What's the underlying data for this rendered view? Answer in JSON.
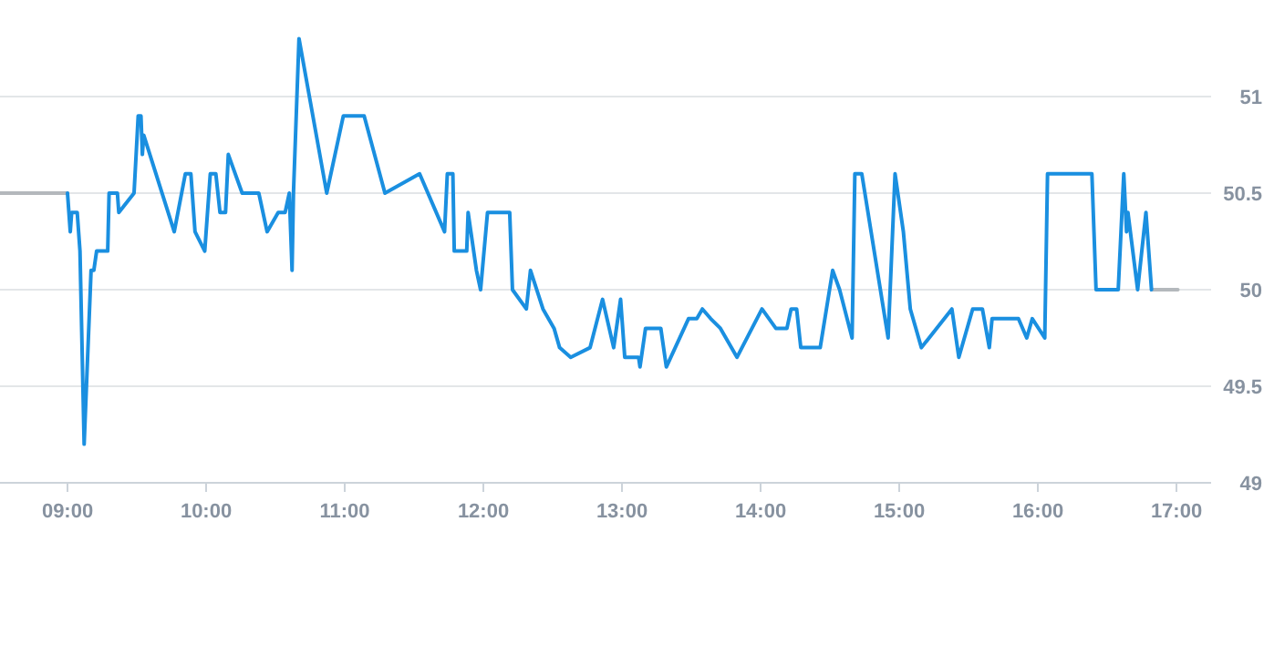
{
  "chart_data": {
    "type": "line",
    "xlim": [
      8.513,
      17.25
    ],
    "ylim": [
      49,
      51.5
    ],
    "xticks": [
      {
        "value": 9,
        "label": "09:00"
      },
      {
        "value": 10,
        "label": "10:00"
      },
      {
        "value": 11,
        "label": "11:00"
      },
      {
        "value": 12,
        "label": "12:00"
      },
      {
        "value": 13,
        "label": "13:00"
      },
      {
        "value": 14,
        "label": "14:00"
      },
      {
        "value": 15,
        "label": "15:00"
      },
      {
        "value": 16,
        "label": "16:00"
      },
      {
        "value": 17,
        "label": "17:00"
      }
    ],
    "yticks": [
      49,
      49.5,
      50,
      50.5,
      51
    ],
    "grid": "y",
    "series": [
      {
        "color": "#b4b8bc",
        "x": [
          8.513,
          9.0,
          9.01,
          16.82,
          17.01
        ],
        "values": [
          50.5,
          50.5,
          null,
          50,
          50
        ]
      },
      {
        "color": "#1a8fe0",
        "x": [
          9.0,
          9.02,
          9.03,
          9.07,
          9.09,
          9.12,
          9.17,
          9.19,
          9.21,
          9.29,
          9.3,
          9.36,
          9.37,
          9.48,
          9.51,
          9.53,
          9.54,
          9.55,
          9.77,
          9.85,
          9.89,
          9.92,
          9.99,
          10.03,
          10.07,
          10.1,
          10.14,
          10.16,
          10.26,
          10.38,
          10.44,
          10.52,
          10.57,
          10.6,
          10.62,
          10.63,
          10.67,
          10.87,
          10.99,
          11.14,
          11.29,
          11.54,
          11.72,
          11.74,
          11.78,
          11.79,
          11.88,
          11.89,
          11.95,
          11.98,
          12.03,
          12.19,
          12.21,
          12.31,
          12.34,
          12.43,
          12.51,
          12.55,
          12.63,
          12.77,
          12.86,
          12.94,
          12.99,
          13.02,
          13.12,
          13.13,
          13.17,
          13.28,
          13.32,
          13.48,
          13.54,
          13.58,
          13.64,
          13.71,
          13.83,
          14.01,
          14.11,
          14.19,
          14.22,
          14.26,
          14.29,
          14.43,
          14.52,
          14.57,
          14.66,
          14.68,
          14.73,
          14.92,
          14.97,
          15.03,
          15.08,
          15.16,
          15.38,
          15.43,
          15.53,
          15.6,
          15.65,
          15.67,
          15.86,
          15.92,
          15.96,
          16.05,
          16.07,
          16.39,
          16.42,
          16.58,
          16.62,
          16.64,
          16.65,
          16.72,
          16.78,
          16.82
        ],
        "values": [
          50.5,
          50.3,
          50.4,
          50.4,
          50.2,
          49.2,
          50.1,
          50.1,
          50.2,
          50.2,
          50.5,
          50.5,
          50.4,
          50.5,
          50.9,
          50.9,
          50.7,
          50.8,
          50.3,
          50.6,
          50.6,
          50.3,
          50.2,
          50.6,
          50.6,
          50.4,
          50.4,
          50.7,
          50.5,
          50.5,
          50.3,
          50.4,
          50.4,
          50.5,
          50.1,
          50.5,
          51.3,
          50.5,
          50.9,
          50.9,
          50.5,
          50.6,
          50.3,
          50.6,
          50.6,
          50.2,
          50.2,
          50.4,
          50.1,
          50.0,
          50.4,
          50.4,
          50.0,
          49.9,
          50.1,
          49.9,
          49.8,
          49.7,
          49.65,
          49.7,
          49.95,
          49.7,
          49.95,
          49.65,
          49.65,
          49.6,
          49.8,
          49.8,
          49.6,
          49.85,
          49.85,
          49.9,
          49.85,
          49.8,
          49.65,
          49.9,
          49.8,
          49.8,
          49.9,
          49.9,
          49.7,
          49.7,
          50.1,
          50.0,
          49.75,
          50.6,
          50.6,
          49.75,
          50.6,
          50.3,
          49.9,
          49.7,
          49.9,
          49.65,
          49.9,
          49.9,
          49.7,
          49.85,
          49.85,
          49.75,
          49.85,
          49.75,
          50.6,
          50.6,
          50.0,
          50.0,
          50.6,
          50.3,
          50.4,
          50.0,
          50.4,
          50.0
        ]
      }
    ]
  }
}
